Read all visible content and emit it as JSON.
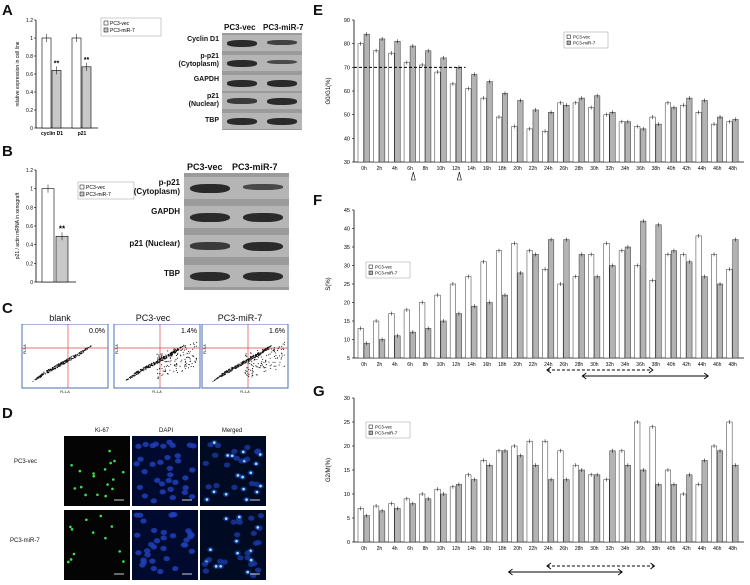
{
  "panels": {
    "A": "A",
    "B": "B",
    "C": "C",
    "D": "D",
    "E": "E",
    "F": "F",
    "G": "G"
  },
  "panelA": {
    "ylabel": "relative expression in cell line",
    "categories": [
      "cyclin D1",
      "p21"
    ],
    "legend": [
      "PC3-vec",
      "PC3-miR-7"
    ],
    "yticks": [
      "0",
      "0.2",
      "0.4",
      "0.6",
      "0.8",
      "1",
      "1.2"
    ],
    "sig": "**",
    "blot_headers": [
      "PC3-vec",
      "PC3-miR-7"
    ],
    "blot_labels": [
      "Cyclin D1",
      "p-p21\n(Cytoplasm)",
      "GAPDH",
      "p21\n(Nuclear)",
      "TBP"
    ]
  },
  "panelB": {
    "ylabel": "p21 / actin mRNA in xenograft",
    "legend": [
      "PC3-vec",
      "PC3-miR-7"
    ],
    "yticks": [
      "0",
      "0.2",
      "0.4",
      "0.6",
      "0.8",
      "1",
      "1.2"
    ],
    "sig": "**",
    "blot_headers": [
      "PC3-vec",
      "PC3-miR-7"
    ],
    "blot_labels": [
      "p-p21\n(Cytoplasm)",
      "GAPDH",
      "p21 (Nuclear)",
      "TBP"
    ]
  },
  "panelC": {
    "titles": [
      "blank",
      "PC3-vec",
      "PC3-miR-7"
    ],
    "percents": [
      "0.0%",
      "1.4%",
      "1.6%"
    ],
    "axis_x": "FL1-A",
    "axis_y": "FL3-A"
  },
  "panelD": {
    "columns": [
      "Ki-67",
      "DAPI",
      "Merged"
    ],
    "rows": [
      "PC3-vec",
      "PC3-miR-7"
    ]
  },
  "chart_data": [
    {
      "id": "A",
      "type": "bar",
      "categories": [
        "cyclin D1",
        "p21"
      ],
      "series": [
        {
          "name": "PC3-vec",
          "values": [
            1.0,
            1.0
          ]
        },
        {
          "name": "PC3-miR-7",
          "values": [
            0.64,
            0.68
          ]
        }
      ],
      "ylim": [
        0,
        1.2
      ],
      "ylabel": "relative expression in cell line"
    },
    {
      "id": "B",
      "type": "bar",
      "categories": [
        ""
      ],
      "series": [
        {
          "name": "PC3-vec",
          "values": [
            1.0
          ]
        },
        {
          "name": "PC3-miR-7",
          "values": [
            0.49
          ]
        }
      ],
      "ylim": [
        0,
        1.2
      ],
      "ylabel": "p21 / actin mRNA in xenograft"
    },
    {
      "id": "E",
      "type": "bar",
      "ylabel": "G0/G1(%)",
      "ylim": [
        30,
        90
      ],
      "yticks": [
        30,
        40,
        50,
        60,
        70,
        80,
        90
      ],
      "categories": [
        "0h",
        "2h",
        "4h",
        "6h",
        "8h",
        "10h",
        "12h",
        "14h",
        "16h",
        "18h",
        "20h",
        "22h",
        "24h",
        "26h",
        "28h",
        "30h",
        "32h",
        "34h",
        "36h",
        "38h",
        "40h",
        "42h",
        "44h",
        "46h",
        "48h"
      ],
      "series": [
        {
          "name": "PC3-vec",
          "values": [
            80,
            77,
            76,
            72,
            71,
            68,
            63,
            61,
            57,
            49,
            45,
            44,
            43,
            55,
            55,
            53,
            50,
            47,
            45,
            49,
            55,
            54,
            51,
            46,
            47
          ]
        },
        {
          "name": "PC3-miR-7",
          "values": [
            84,
            82,
            81,
            79,
            77,
            74,
            70,
            67,
            64,
            59,
            56,
            52,
            51,
            54,
            57,
            58,
            51,
            47,
            44,
            46,
            53,
            57,
            56,
            49,
            48
          ]
        }
      ],
      "threshold": 70
    },
    {
      "id": "F",
      "type": "bar",
      "ylabel": "S(%)",
      "ylim": [
        5,
        45
      ],
      "yticks": [
        5,
        10,
        15,
        20,
        25,
        30,
        35,
        40,
        45
      ],
      "categories": [
        "0h",
        "2h",
        "4h",
        "6h",
        "8h",
        "10h",
        "12h",
        "14h",
        "16h",
        "18h",
        "20h",
        "22h",
        "24h",
        "26h",
        "28h",
        "30h",
        "32h",
        "34h",
        "36h",
        "38h",
        "40h",
        "42h",
        "44h",
        "46h",
        "48h"
      ],
      "series": [
        {
          "name": "PC3-vec",
          "values": [
            13,
            15,
            17,
            18,
            20,
            22,
            25,
            27,
            31,
            34,
            36,
            34,
            29,
            25,
            27,
            33,
            36,
            34,
            30,
            26,
            33,
            33,
            38,
            33,
            29
          ]
        },
        {
          "name": "PC3-miR-7",
          "values": [
            9,
            10,
            11,
            12,
            13,
            15,
            17,
            19,
            20,
            22,
            28,
            33,
            37,
            37,
            33,
            27,
            30,
            35,
            42,
            41,
            34,
            31,
            27,
            25,
            37
          ]
        }
      ]
    },
    {
      "id": "G",
      "type": "bar",
      "ylabel": "G2/M(%)",
      "ylim": [
        0,
        30
      ],
      "yticks": [
        0,
        5,
        10,
        15,
        20,
        25,
        30
      ],
      "categories": [
        "0h",
        "2h",
        "4h",
        "6h",
        "8h",
        "10h",
        "12h",
        "14h",
        "16h",
        "18h",
        "20h",
        "22h",
        "24h",
        "26h",
        "28h",
        "30h",
        "32h",
        "34h",
        "36h",
        "38h",
        "40h",
        "42h",
        "44h",
        "46h",
        "48h"
      ],
      "series": [
        {
          "name": "PC3-vec",
          "values": [
            7,
            7.5,
            8,
            9,
            10,
            11,
            11.5,
            14,
            17,
            19,
            20,
            21,
            21,
            19,
            16,
            14,
            13,
            19,
            25,
            24,
            15,
            10,
            12,
            20,
            25
          ]
        },
        {
          "name": "PC3-miR-7",
          "values": [
            5.5,
            6.5,
            7,
            8,
            9,
            10,
            12,
            13,
            16,
            19,
            18,
            16,
            13,
            13,
            15,
            14,
            19,
            16,
            15,
            12,
            12,
            14,
            17,
            19,
            16
          ]
        }
      ]
    }
  ],
  "legendE": [
    "PC3-vec",
    "PC3-miR-7"
  ],
  "legendF": [
    "PC3-vec",
    "PC3-miR-7"
  ],
  "legendG": [
    "PC3-vec",
    "PC3-miR-7"
  ]
}
